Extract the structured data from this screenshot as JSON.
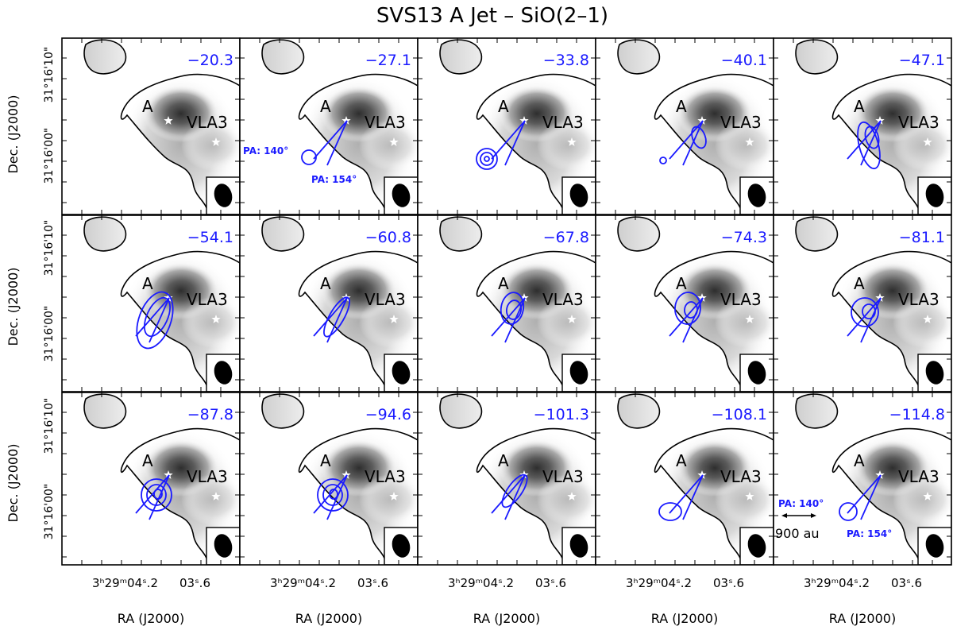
{
  "title": "SVS13 A Jet – SiO(2–1)",
  "colors": {
    "contour_blue": "#1a1aff",
    "map_dark": "#333333",
    "frame": "#000000"
  },
  "labels": {
    "source_a": "A",
    "source_vla3": "VLA3",
    "pa_140": "PA: 140°",
    "pa_154": "PA: 154°",
    "scale_bar": "900 au"
  },
  "axes": {
    "xlabel": "RA (J2000)",
    "ylabel": "Dec. (J2000)",
    "y_ticks": [
      "31°16'10\"",
      "31°16'00\"",
      "31°16'10\""
    ],
    "x_tick_main": "3ʰ29ᵐ04ˢ.2",
    "x_tick_right": "03ˢ.6"
  },
  "chart_data": {
    "type": "channel_map",
    "unit_hint": "velocity per panel",
    "channels": [
      "−20.3",
      "−27.1",
      "−33.8",
      "−40.1",
      "−47.1",
      "−54.1",
      "−60.8",
      "−67.8",
      "−74.3",
      "−81.1",
      "−87.8",
      "−94.6",
      "−101.3",
      "−108.1",
      "−114.8"
    ],
    "rows": 3,
    "cols": 5,
    "pa_annotated_panels": [
      1,
      14
    ],
    "scale_bar_panel": 14
  }
}
